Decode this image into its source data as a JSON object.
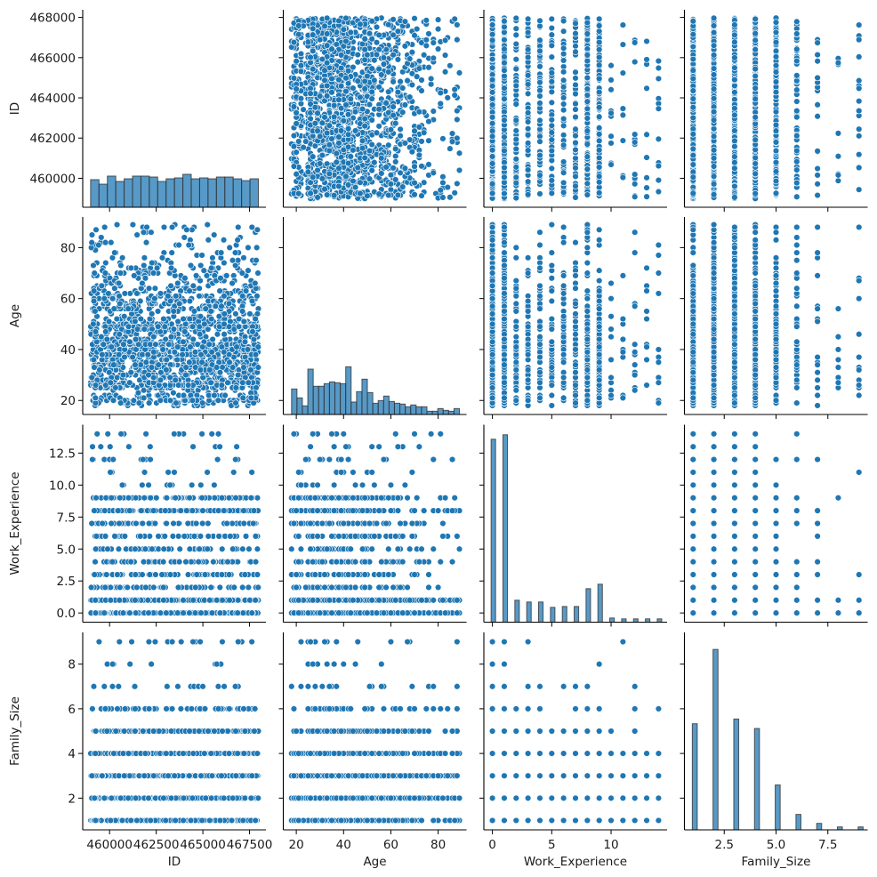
{
  "chart_data": {
    "type": "pairplot",
    "variables": [
      "ID",
      "Age",
      "Work_Experience",
      "Family_Size"
    ],
    "colors": {
      "points": "#1f77b4",
      "point_edge": "#ffffff",
      "bars": "#1f77b4",
      "bar_edge": "#333333"
    },
    "grid": false,
    "axes": {
      "ID": {
        "label": "ID",
        "range": [
          458560,
          468380
        ],
        "x_ticks": [
          460000,
          462500,
          465000,
          467500
        ],
        "x_tick_labels": [
          "460000",
          "462500",
          "465000",
          "467500"
        ],
        "y_ticks": [
          460000,
          462000,
          464000,
          466000,
          468000
        ],
        "y_tick_labels": [
          "460000",
          "462000",
          "464000",
          "466000",
          "468000"
        ]
      },
      "Age": {
        "label": "Age",
        "range": [
          14.5,
          92
        ],
        "x_ticks": [
          20,
          40,
          60,
          80
        ],
        "x_tick_labels": [
          "20",
          "40",
          "60",
          "80"
        ],
        "y_ticks": [
          20,
          40,
          60,
          80
        ],
        "y_tick_labels": [
          "20",
          "40",
          "60",
          "80"
        ]
      },
      "Work_Experience": {
        "label": "Work_Experience",
        "range": [
          -0.72,
          14.72
        ],
        "x_ticks": [
          0,
          5,
          10
        ],
        "x_tick_labels": [
          "0",
          "5",
          "10"
        ],
        "y_ticks": [
          0,
          2.5,
          5,
          7.5,
          10,
          12.5
        ],
        "y_tick_labels": [
          "0.0",
          "2.5",
          "5.0",
          "7.5",
          "10.0",
          "12.5"
        ]
      },
      "Family_Size": {
        "label": "Family_Size",
        "range": [
          0.58,
          9.42
        ],
        "x_ticks": [
          2.5,
          5,
          7.5
        ],
        "x_tick_labels": [
          "2.5",
          "5.0",
          "7.5"
        ],
        "y_ticks": [
          2,
          4,
          6,
          8
        ],
        "y_tick_labels": [
          "2",
          "4",
          "6",
          "8"
        ]
      }
    },
    "diagonal": [
      {
        "variable": "ID",
        "type": "histogram",
        "bin_range": [
          458982,
          467974
        ],
        "counts": [
          387,
          324,
          437,
          362,
          399,
          437,
          437,
          424,
          362,
          399,
          412,
          462,
          399,
          412,
          399,
          424,
          424,
          399,
          374,
          399
        ],
        "ylim": [
          0,
          2770
        ]
      },
      {
        "variable": "Age",
        "type": "histogram",
        "bin_range": [
          18,
          89
        ],
        "counts": [
          370,
          241,
          125,
          658,
          409,
          409,
          447,
          473,
          460,
          447,
          692,
          181,
          331,
          512,
          318,
          163,
          202,
          267,
          189,
          163,
          151,
          112,
          138,
          112,
          112,
          47,
          47,
          86,
          60,
          47,
          86
        ],
        "ylim": [
          0,
          2864
        ]
      },
      {
        "variable": "Work_Experience",
        "type": "histogram",
        "bin_centers": [
          0,
          1,
          2,
          3,
          4,
          5,
          6,
          7,
          8,
          9,
          10,
          11,
          12,
          13,
          14
        ],
        "counts": [
          2332,
          2389,
          280,
          257,
          257,
          189,
          200,
          200,
          427,
          484,
          53,
          42,
          42,
          42,
          42
        ],
        "ylim": [
          0,
          2517
        ]
      },
      {
        "variable": "Family_Size",
        "type": "histogram",
        "bin_centers": [
          1,
          2,
          3,
          4,
          5,
          6,
          7,
          8,
          9
        ],
        "counts": [
          1435,
          2440,
          1499,
          1371,
          607,
          209,
          88,
          40,
          40
        ],
        "ylim": [
          0,
          2670
        ]
      }
    ],
    "id_observed_range": [
      458982,
      467974
    ],
    "age_observed_range": [
      18,
      89
    ],
    "work_experience_by_family_size": {
      "1": [
        0,
        1,
        2,
        3,
        4,
        5,
        6,
        7,
        8,
        9,
        10,
        11,
        12,
        13,
        14
      ],
      "2": [
        0,
        1,
        2,
        3,
        4,
        5,
        6,
        7,
        8,
        9,
        10,
        11,
        12,
        13,
        14
      ],
      "3": [
        0,
        1,
        2,
        3,
        4,
        5,
        6,
        7,
        8,
        9,
        10,
        11,
        12,
        13,
        14
      ],
      "4": [
        0,
        1,
        2,
        3,
        4,
        5,
        6,
        7,
        8,
        9,
        10,
        11,
        12,
        13,
        14
      ],
      "5": [
        0,
        1,
        2,
        3,
        4,
        5,
        6,
        7,
        8,
        9,
        10,
        11,
        12
      ],
      "6": [
        0,
        1,
        2,
        3,
        4,
        6,
        7,
        8,
        9,
        10,
        11,
        12,
        13,
        14
      ],
      "7": [
        0,
        1,
        2,
        3,
        4,
        5,
        6,
        7,
        8,
        9,
        12,
        13
      ],
      "8": [
        0,
        1,
        2,
        3,
        4,
        6,
        8,
        9,
        14
      ],
      "9": [
        0,
        1,
        2,
        3,
        4,
        5,
        8,
        11
      ]
    }
  }
}
